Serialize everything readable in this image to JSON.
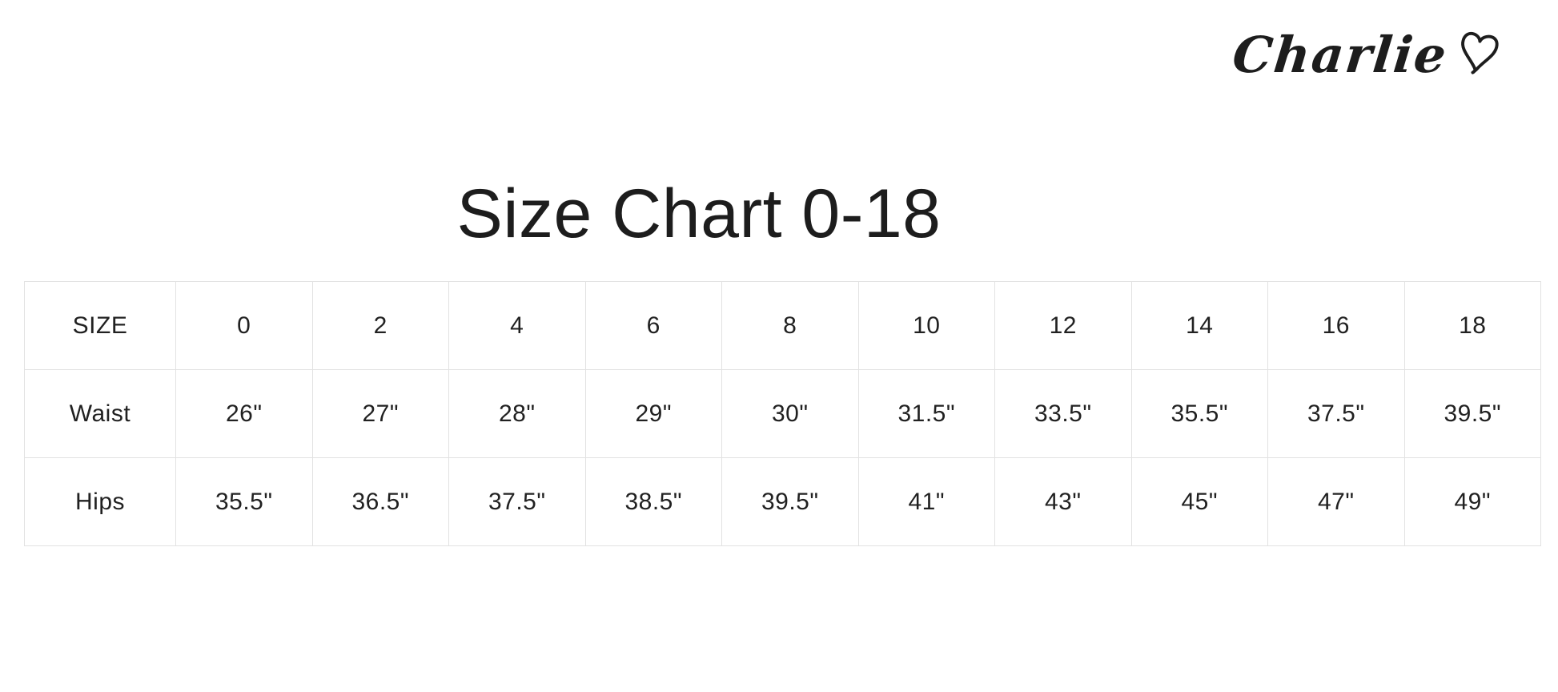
{
  "logo": {
    "brand_text": "Charlie",
    "icon": "heart-icon"
  },
  "title": "Size Chart 0-18",
  "table": {
    "header": [
      "SIZE",
      "0",
      "2",
      "4",
      "6",
      "8",
      "10",
      "12",
      "14",
      "16",
      "18"
    ],
    "rows": [
      {
        "label": "Waist",
        "cells": [
          "Waist",
          "26\"",
          "27\"",
          "28\"",
          "29\"",
          "30\"",
          "31.5\"",
          "33.5\"",
          "35.5\"",
          "37.5\"",
          "39.5\""
        ]
      },
      {
        "label": "Hips",
        "cells": [
          "Hips",
          "35.5\"",
          "36.5\"",
          "37.5\"",
          "38.5\"",
          "39.5\"",
          "41\"",
          "43\"",
          "45\"",
          "47\"",
          "49\""
        ]
      }
    ]
  },
  "chart_data": {
    "type": "table",
    "title": "Size Chart 0-18",
    "categories": [
      "0",
      "2",
      "4",
      "6",
      "8",
      "10",
      "12",
      "14",
      "16",
      "18"
    ],
    "series": [
      {
        "name": "Waist",
        "unit": "inches",
        "values": [
          26,
          27,
          28,
          29,
          30,
          31.5,
          33.5,
          35.5,
          37.5,
          39.5
        ]
      },
      {
        "name": "Hips",
        "unit": "inches",
        "values": [
          35.5,
          36.5,
          37.5,
          38.5,
          39.5,
          41,
          43,
          45,
          47,
          49
        ]
      }
    ],
    "layout": {
      "header_row": "sizes",
      "label_column": "measurement",
      "grid": true
    }
  },
  "colors": {
    "background": "#ffffff",
    "text": "#212121",
    "border": "#e2e2e2"
  }
}
